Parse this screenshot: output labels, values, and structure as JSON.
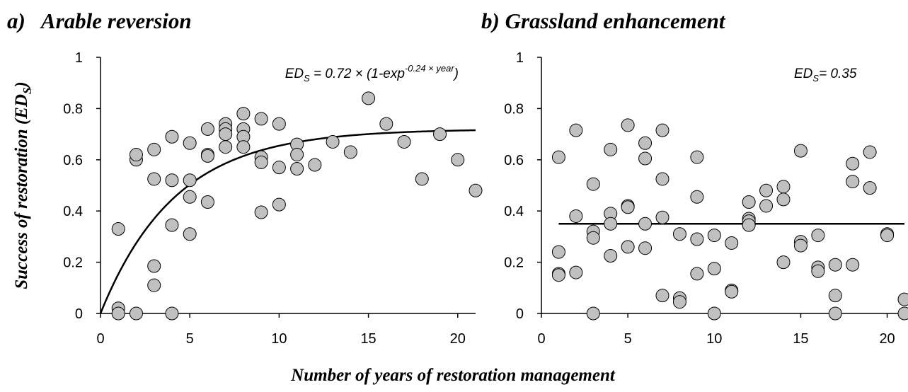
{
  "chart_data": [
    {
      "type": "scatter",
      "title": "a)   Arable reversion",
      "y_label": [
        "Success of restoration (ED",
        "S",
        ")"
      ],
      "annotation": [
        "ED",
        "S",
        " = 0.72 × (1-exp",
        "-0.24 × year",
        ")"
      ],
      "fit": {
        "a": 0.72,
        "k": 0.24,
        "x_range": [
          0,
          21
        ]
      },
      "xlim": [
        0,
        21
      ],
      "xticks": [
        0,
        5,
        10,
        15,
        20
      ],
      "ylim": [
        0,
        1
      ],
      "yticks": [
        0,
        0.2,
        0.4,
        0.6,
        0.8,
        1
      ],
      "series": [
        {
          "color": "#c0c0c0",
          "x": [
            1,
            1,
            1,
            2,
            2,
            2,
            3,
            3,
            3,
            3,
            4,
            4,
            4,
            4,
            5,
            5,
            5,
            5,
            6,
            6,
            6,
            6,
            7,
            7,
            7,
            7,
            8,
            8,
            8,
            8,
            9,
            9,
            9,
            9,
            10,
            10,
            10,
            11,
            11,
            11,
            12,
            13,
            14,
            15,
            16,
            17,
            18,
            19,
            20,
            21
          ],
          "values": [
            0.33,
            0.02,
            0,
            0,
            0.6,
            0.62,
            0.64,
            0.525,
            0.185,
            0.11,
            0.69,
            0.52,
            0.345,
            0,
            0.665,
            0.52,
            0.455,
            0.31,
            0.72,
            0.62,
            0.615,
            0.435,
            0.74,
            0.72,
            0.7,
            0.65,
            0.78,
            0.72,
            0.69,
            0.65,
            0.76,
            0.61,
            0.59,
            0.395,
            0.74,
            0.57,
            0.425,
            0.66,
            0.62,
            0.565,
            0.58,
            0.67,
            0.63,
            0.84,
            0.74,
            0.67,
            0.525,
            0.7,
            0.6,
            0.48
          ]
        }
      ]
    },
    {
      "type": "scatter",
      "title": "b) Grassland enhancement",
      "annotation": [
        "ED",
        "S",
        "= 0.35"
      ],
      "fit": {
        "value": 0.35,
        "x_range": [
          1,
          21
        ]
      },
      "xlim": [
        0,
        21
      ],
      "xticks": [
        0,
        5,
        10,
        15,
        20
      ],
      "ylim": [
        0,
        1
      ],
      "yticks": [
        0,
        0.2,
        0.4,
        0.6,
        0.8,
        1
      ],
      "series": [
        {
          "color": "#c0c0c0",
          "x": [
            1,
            1,
            1,
            1,
            2,
            2,
            2,
            3,
            3,
            3,
            3,
            4,
            4,
            4,
            4,
            5,
            5,
            5,
            5,
            6,
            6,
            6,
            6,
            7,
            7,
            7,
            7,
            8,
            8,
            8,
            9,
            9,
            9,
            9,
            10,
            10,
            10,
            11,
            11,
            11,
            12,
            12,
            12,
            12,
            13,
            13,
            14,
            14,
            14,
            15,
            15,
            15,
            16,
            16,
            16,
            17,
            17,
            17,
            18,
            18,
            18,
            19,
            19,
            20,
            20,
            21,
            21
          ],
          "values": [
            0.61,
            0.24,
            0.155,
            0.15,
            0.715,
            0.38,
            0.16,
            0.505,
            0.32,
            0.295,
            0,
            0.64,
            0.39,
            0.35,
            0.225,
            0.735,
            0.42,
            0.415,
            0.26,
            0.665,
            0.605,
            0.35,
            0.255,
            0.715,
            0.525,
            0.375,
            0.07,
            0.31,
            0.06,
            0.045,
            0.61,
            0.455,
            0.29,
            0.155,
            0.305,
            0.175,
            0,
            0.275,
            0.09,
            0.085,
            0.435,
            0.37,
            0.36,
            0.345,
            0.48,
            0.42,
            0.495,
            0.445,
            0.2,
            0.635,
            0.28,
            0.265,
            0.305,
            0.18,
            0.165,
            0.19,
            0.07,
            0,
            0.585,
            0.515,
            0.19,
            0.63,
            0.49,
            0.31,
            0.305,
            0.055,
            0
          ]
        }
      ]
    }
  ],
  "x_label": "Number of years of restoration management"
}
